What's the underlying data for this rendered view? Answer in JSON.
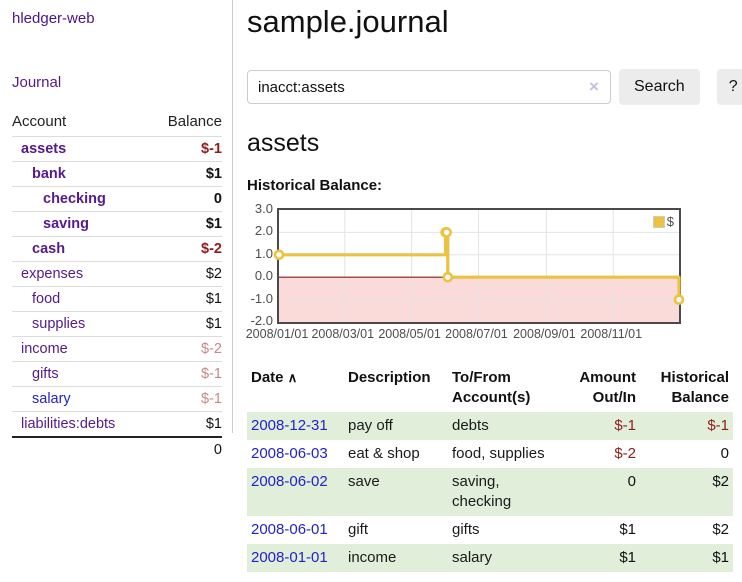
{
  "colors": {
    "purple_link": "#551a8b",
    "blue_link": "#2222cc",
    "negative_strong": "#8f1d1d",
    "negative_soft": "#c98888",
    "row_stripe_green": "#e0eeda",
    "chart_line": "#edc240",
    "chart_negative_fill": "#fbdada",
    "chart_zero_line": "#8b1a1a",
    "button_bg": "#ececec"
  },
  "sidebar": {
    "title": "hledger-web",
    "journal_label": "Journal",
    "accounts_table": {
      "account_header": "Account",
      "balance_header": "Balance",
      "rows": [
        {
          "name": "assets",
          "depth": 1,
          "balance": "$-1",
          "emph": true,
          "name_style": "purple",
          "bal_style": "neg-strong"
        },
        {
          "name": "bank",
          "depth": 2,
          "balance": "$1",
          "emph": true,
          "name_style": "purple",
          "bal_style": "plain"
        },
        {
          "name": "checking",
          "depth": 3,
          "balance": "0",
          "emph": true,
          "name_style": "purple",
          "bal_style": "plain"
        },
        {
          "name": "saving",
          "depth": 3,
          "balance": "$1",
          "emph": true,
          "name_style": "purple",
          "bal_style": "plain"
        },
        {
          "name": "cash",
          "depth": 2,
          "balance": "$-2",
          "emph": true,
          "name_style": "purple",
          "bal_style": "neg-strong"
        },
        {
          "name": "expenses",
          "depth": 1,
          "balance": "$2",
          "emph": false,
          "name_style": "purple",
          "bal_style": "plain"
        },
        {
          "name": "food",
          "depth": 2,
          "balance": "$1",
          "emph": false,
          "name_style": "purple",
          "bal_style": "plain"
        },
        {
          "name": "supplies",
          "depth": 2,
          "balance": "$1",
          "emph": false,
          "name_style": "purple",
          "bal_style": "plain"
        },
        {
          "name": "income",
          "depth": 1,
          "balance": "$-2",
          "emph": false,
          "name_style": "purple",
          "bal_style": "neg-soft"
        },
        {
          "name": "gifts",
          "depth": 2,
          "balance": "$-1",
          "emph": false,
          "name_style": "purple",
          "bal_style": "neg-soft"
        },
        {
          "name": "salary",
          "depth": 2,
          "balance": "$-1",
          "emph": false,
          "name_style": "blue",
          "bal_style": "neg-soft"
        },
        {
          "name": "liabilities:debts",
          "depth": 1,
          "balance": "$1",
          "emph": false,
          "name_style": "purple",
          "bal_style": "plain"
        }
      ],
      "total": "0"
    }
  },
  "main": {
    "title": "sample.journal",
    "search": {
      "value": "inacct:assets",
      "clear_icon": "×",
      "button_label": "Search",
      "help_label": "?"
    },
    "account_heading": "assets",
    "chart_heading": "Historical Balance:",
    "register": {
      "headers": {
        "date": "Date",
        "sort_icon": "∧",
        "description": "Description",
        "accounts": "To/From Account(s)",
        "amount": "Amount Out/In",
        "balance": "Historical Balance"
      },
      "rows": [
        {
          "date": "2008-12-31",
          "description": "pay off",
          "accounts": "debts",
          "amount": "$-1",
          "amount_style": "neg",
          "balance": "$-1",
          "balance_style": "neg"
        },
        {
          "date": "2008-06-03",
          "description": "eat & shop",
          "accounts": "food, supplies",
          "amount": "$-2",
          "amount_style": "neg",
          "balance": "0",
          "balance_style": "plain"
        },
        {
          "date": "2008-06-02",
          "description": "save",
          "accounts": "saving, checking",
          "amount": "0",
          "amount_style": "plain",
          "balance": "$2",
          "balance_style": "plain"
        },
        {
          "date": "2008-06-01",
          "description": "gift",
          "accounts": "gifts",
          "amount": "$1",
          "amount_style": "plain",
          "balance": "$2",
          "balance_style": "plain"
        },
        {
          "date": "2008-01-01",
          "description": "income",
          "accounts": "salary",
          "amount": "$1",
          "amount_style": "plain",
          "balance": "$1",
          "balance_style": "plain"
        }
      ]
    }
  },
  "chart_data": {
    "type": "line",
    "interpolation": "step-after",
    "title": "Historical Balance:",
    "series": [
      {
        "name": "$",
        "color": "#edc240",
        "points": [
          {
            "date": "2008-01-01",
            "day": 0,
            "value": 1
          },
          {
            "date": "2008-06-01",
            "day": 152,
            "value": 2
          },
          {
            "date": "2008-06-02",
            "day": 153,
            "value": 2
          },
          {
            "date": "2008-06-03",
            "day": 154,
            "value": 0
          },
          {
            "date": "2008-12-31",
            "day": 365,
            "value": -1
          }
        ]
      }
    ],
    "x_range_days": 365,
    "x_ticks": [
      {
        "label": "2008/01/01",
        "day": 0
      },
      {
        "label": "2008/03/01",
        "day": 60
      },
      {
        "label": "2008/05/01",
        "day": 121
      },
      {
        "label": "2008/07/01",
        "day": 182
      },
      {
        "label": "2008/09/01",
        "day": 244
      },
      {
        "label": "2008/11/01",
        "day": 305
      }
    ],
    "y_ticks": [
      "3.0",
      "2.0",
      "1.0",
      "0.0",
      "-1.0",
      "-2.0"
    ],
    "ylim": [
      -2,
      3
    ],
    "grid": true,
    "negative_region_color": "#fbdada",
    "zero_line_color": "#8b1a1a",
    "legend": {
      "label": "$",
      "position": "top-right"
    }
  }
}
